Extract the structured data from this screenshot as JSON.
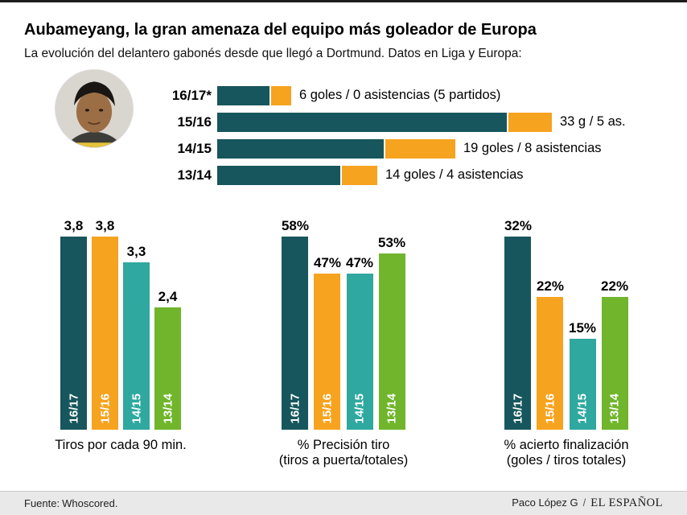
{
  "header": {
    "title": "Aubameyang, la gran amenaza del equipo más goleador de Europa",
    "subtitle": "La evolución del delantero gabonés desde que llegó a Dortmund. Datos en Liga y Europa:"
  },
  "colors": {
    "goals": "#17565c",
    "assists": "#f6a31f",
    "seasons": [
      "#17565c",
      "#f6a31f",
      "#2fa8a0",
      "#70b52c"
    ]
  },
  "chart_data": [
    {
      "type": "bar",
      "orientation": "horizontal",
      "stacked": true,
      "categories": [
        "16/17*",
        "15/16",
        "14/15",
        "13/14"
      ],
      "series": [
        {
          "name": "goles",
          "values": [
            6,
            33,
            19,
            14
          ],
          "color": "#17565c"
        },
        {
          "name": "asistencias",
          "values": [
            0,
            5,
            8,
            4
          ],
          "color": "#f6a31f"
        }
      ],
      "labels": [
        "6 goles / 0 asistencias (5 partidos)",
        "33 g / 5 as.",
        "19 goles / 8 asistencias",
        "14 goles / 4 asistencias"
      ],
      "axis_max": 38
    },
    {
      "type": "bar",
      "title": "Tiros por cada 90 min.",
      "categories": [
        "16/17",
        "15/16",
        "14/15",
        "13/14"
      ],
      "values": [
        3.8,
        3.8,
        3.3,
        2.4
      ],
      "value_labels": [
        "3,8",
        "3,8",
        "3,3",
        "2,4"
      ]
    },
    {
      "type": "bar",
      "title": "% Precisión tiro",
      "subtitle": "(tiros a puerta/totales)",
      "categories": [
        "16/17",
        "15/16",
        "14/15",
        "13/14"
      ],
      "values": [
        58,
        47,
        47,
        53
      ],
      "value_labels": [
        "58%",
        "47%",
        "47%",
        "53%"
      ]
    },
    {
      "type": "bar",
      "title": "% acierto finalización",
      "subtitle": "(goles / tiros totales)",
      "categories": [
        "16/17",
        "15/16",
        "14/15",
        "13/14"
      ],
      "values": [
        32,
        22,
        15,
        22
      ],
      "value_labels": [
        "32%",
        "22%",
        "15%",
        "22%"
      ]
    }
  ],
  "footer": {
    "source_label": "Fuente:",
    "source": "Whoscored.",
    "credit": "Paco López G",
    "separator": "/",
    "brand": "EL ESPAÑOL"
  }
}
